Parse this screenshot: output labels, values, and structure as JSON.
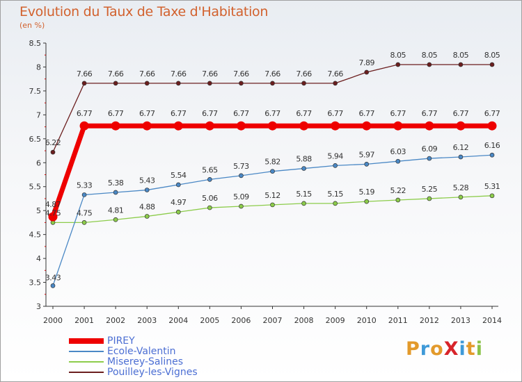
{
  "header": {
    "title": "Evolution du Taux de Taxe d'Habitation",
    "unit": "(en %)"
  },
  "logo": {
    "text": "ProXiti",
    "colors": [
      "#e39a2b",
      "#3f9ad8",
      "#e39a2b",
      "#d8242a",
      "#3f9ad8",
      "#e39a2b",
      "#8bc34a"
    ]
  },
  "chart_data": {
    "type": "line",
    "title": "Evolution du Taux de Taxe d'Habitation",
    "ylabel": "(en %)",
    "xlabel": "",
    "x": [
      "2000",
      "2001",
      "2002",
      "2003",
      "2004",
      "2005",
      "2006",
      "2007",
      "2008",
      "2009",
      "2010",
      "2011",
      "2012",
      "2013",
      "2014"
    ],
    "ylim": [
      3,
      8.5
    ],
    "yticks": [
      "3",
      "3.5",
      "4",
      "4.5",
      "5",
      "5.5",
      "6",
      "6.5",
      "7",
      "7.5",
      "8",
      "8.5"
    ],
    "grid": false,
    "legend": "bottom-left",
    "series": [
      {
        "name": "PIREY",
        "color": "#ee0000",
        "values": [
          4.87,
          6.77,
          6.77,
          6.77,
          6.77,
          6.77,
          6.77,
          6.77,
          6.77,
          6.77,
          6.77,
          6.77,
          6.77,
          6.77,
          6.77
        ]
      },
      {
        "name": "Ecole-Valentin",
        "color": "#4a88c5",
        "values": [
          3.43,
          5.33,
          5.38,
          5.43,
          5.54,
          5.65,
          5.73,
          5.82,
          5.88,
          5.94,
          5.97,
          6.03,
          6.09,
          6.12,
          6.16
        ]
      },
      {
        "name": "Miserey-Salines",
        "color": "#8ccc4a",
        "values": [
          4.75,
          4.75,
          4.81,
          4.88,
          4.97,
          5.06,
          5.09,
          5.12,
          5.15,
          5.15,
          5.19,
          5.22,
          5.25,
          5.28,
          5.31
        ]
      },
      {
        "name": "Pouilley-les-Vignes",
        "color": "#6b1e1e",
        "values": [
          6.22,
          7.66,
          7.66,
          7.66,
          7.66,
          7.66,
          7.66,
          7.66,
          7.66,
          7.66,
          7.89,
          8.05,
          8.05,
          8.05,
          8.05
        ]
      }
    ],
    "value_labels": [
      [
        "4.87",
        "6.77",
        "6.77",
        "6.77",
        "6.77",
        "6.77",
        "6.77",
        "6.77",
        "6.77",
        "6.77",
        "6.77",
        "6.77",
        "6.77",
        "6.77",
        "6.77"
      ],
      [
        "3.43",
        "5.33",
        "5.38",
        "5.43",
        "5.54",
        "5.65",
        "5.73",
        "5.82",
        "5.88",
        "5.94",
        "5.97",
        "6.03",
        "6.09",
        "6.12",
        "6.16"
      ],
      [
        "4.75",
        "4.75",
        "4.81",
        "4.88",
        "4.97",
        "5.06",
        "5.09",
        "5.12",
        "5.15",
        "5.15",
        "5.19",
        "5.22",
        "5.25",
        "5.28",
        "5.31"
      ],
      [
        "6.22",
        "7.66",
        "7.66",
        "7.66",
        "7.66",
        "7.66",
        "7.66",
        "7.66",
        "7.66",
        "7.66",
        "7.89",
        "8.05",
        "8.05",
        "8.05",
        "8.05"
      ]
    ]
  }
}
